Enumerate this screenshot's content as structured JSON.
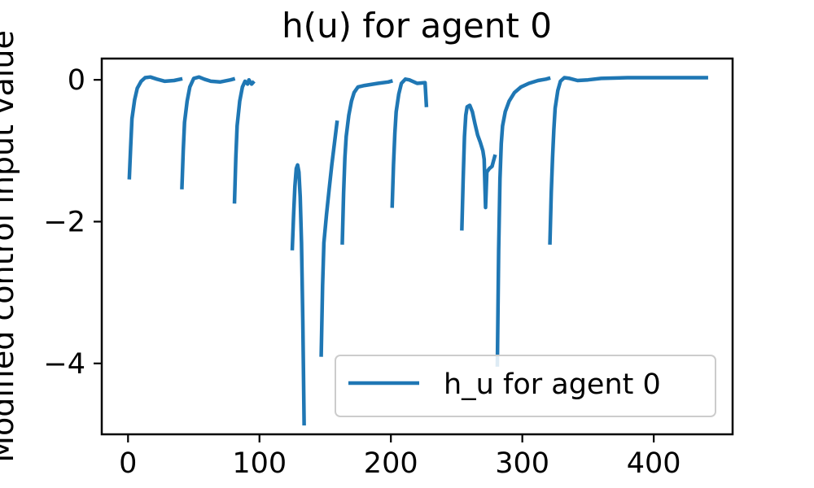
{
  "chart_data": {
    "type": "line",
    "title": "h(u) for agent 0",
    "xlabel": "",
    "ylabel": "Modified control input value",
    "xlim": [
      -20,
      460
    ],
    "ylim": [
      -5.0,
      0.3
    ],
    "xticks": [
      0,
      100,
      200,
      300,
      400
    ],
    "xtick_labels": [
      "0",
      "100",
      "200",
      "300",
      "400"
    ],
    "yticks": [
      0,
      -2,
      -4
    ],
    "ytick_labels": [
      "0",
      "−2",
      "−4"
    ],
    "grid": false,
    "legend_position": "bottom-right",
    "color": "#1f77b4",
    "series": [
      {
        "name": "h_u for agent 0",
        "segments": [
          [
            [
              1,
              -1.38
            ],
            [
              2,
              -0.95
            ],
            [
              3,
              -0.55
            ],
            [
              5,
              -0.28
            ],
            [
              7,
              -0.12
            ],
            [
              10,
              -0.02
            ],
            [
              13,
              0.03
            ],
            [
              17,
              0.04
            ],
            [
              22,
              0.01
            ],
            [
              28,
              -0.02
            ],
            [
              35,
              -0.01
            ],
            [
              40,
              0.01
            ]
          ],
          [
            [
              41,
              -1.52
            ],
            [
              42,
              -1.0
            ],
            [
              43,
              -0.6
            ],
            [
              45,
              -0.3
            ],
            [
              47,
              -0.1
            ],
            [
              50,
              0.02
            ],
            [
              54,
              0.04
            ],
            [
              58,
              0.01
            ],
            [
              63,
              -0.02
            ],
            [
              70,
              -0.03
            ],
            [
              78,
              0.0
            ],
            [
              80,
              0.01
            ]
          ],
          [
            [
              81,
              -1.72
            ],
            [
              82,
              -1.1
            ],
            [
              83,
              -0.65
            ],
            [
              85,
              -0.3
            ],
            [
              87,
              -0.1
            ],
            [
              89,
              -0.02
            ],
            [
              91,
              -0.06
            ],
            [
              92,
              0.0
            ],
            [
              94,
              -0.06
            ],
            [
              95,
              -0.04
            ]
          ],
          [
            [
              125,
              -2.38
            ],
            [
              126,
              -1.9
            ],
            [
              127,
              -1.5
            ],
            [
              128,
              -1.25
            ],
            [
              129,
              -1.2
            ],
            [
              130,
              -1.3
            ],
            [
              131,
              -1.65
            ],
            [
              132,
              -2.3
            ],
            [
              133,
              -3.4
            ],
            [
              134,
              -4.85
            ]
          ],
          [
            [
              147,
              -3.88
            ],
            [
              148,
              -2.9
            ],
            [
              149,
              -2.3
            ],
            [
              151,
              -1.9
            ],
            [
              153,
              -1.55
            ],
            [
              155,
              -1.2
            ],
            [
              157,
              -0.9
            ],
            [
              159,
              -0.6
            ]
          ],
          [
            [
              163,
              -2.3
            ],
            [
              164,
              -1.6
            ],
            [
              165,
              -1.1
            ],
            [
              166,
              -0.8
            ],
            [
              168,
              -0.5
            ],
            [
              170,
              -0.3
            ],
            [
              172,
              -0.18
            ],
            [
              175,
              -0.1
            ],
            [
              180,
              -0.08
            ],
            [
              190,
              -0.05
            ],
            [
              198,
              -0.03
            ],
            [
              200,
              -0.02
            ]
          ],
          [
            [
              201,
              -1.78
            ],
            [
              202,
              -1.2
            ],
            [
              203,
              -0.75
            ],
            [
              204,
              -0.45
            ],
            [
              206,
              -0.2
            ],
            [
              208,
              -0.05
            ],
            [
              211,
              0.01
            ],
            [
              214,
              0.0
            ],
            [
              220,
              -0.05
            ],
            [
              226,
              -0.04
            ],
            [
              227,
              -0.36
            ]
          ],
          [
            [
              254,
              -2.1
            ],
            [
              255,
              -1.4
            ],
            [
              256,
              -0.8
            ],
            [
              257,
              -0.5
            ],
            [
              258,
              -0.38
            ],
            [
              260,
              -0.36
            ],
            [
              262,
              -0.45
            ],
            [
              264,
              -0.62
            ],
            [
              266,
              -0.78
            ],
            [
              268,
              -0.88
            ],
            [
              270,
              -1.0
            ],
            [
              271,
              -1.12
            ],
            [
              272,
              -1.8
            ],
            [
              273,
              -1.3
            ],
            [
              275,
              -1.25
            ],
            [
              277,
              -1.22
            ],
            [
              278,
              -1.15
            ],
            [
              279,
              -1.08
            ]
          ],
          [
            [
              281,
              -4.02
            ],
            [
              282,
              -2.4
            ],
            [
              283,
              -1.4
            ],
            [
              284,
              -0.9
            ],
            [
              285,
              -0.65
            ],
            [
              287,
              -0.45
            ],
            [
              290,
              -0.3
            ],
            [
              294,
              -0.18
            ],
            [
              299,
              -0.1
            ],
            [
              305,
              -0.05
            ],
            [
              312,
              -0.01
            ],
            [
              318,
              0.01
            ],
            [
              320,
              0.02
            ]
          ],
          [
            [
              321,
              -2.3
            ],
            [
              322,
              -1.6
            ],
            [
              323,
              -1.1
            ],
            [
              324,
              -0.7
            ],
            [
              325,
              -0.4
            ],
            [
              327,
              -0.15
            ],
            [
              329,
              -0.02
            ],
            [
              332,
              0.03
            ],
            [
              336,
              0.02
            ],
            [
              342,
              -0.01
            ],
            [
              350,
              0.0
            ],
            [
              360,
              0.02
            ],
            [
              380,
              0.03
            ],
            [
              400,
              0.03
            ],
            [
              420,
              0.03
            ],
            [
              440,
              0.03
            ]
          ]
        ]
      }
    ]
  }
}
